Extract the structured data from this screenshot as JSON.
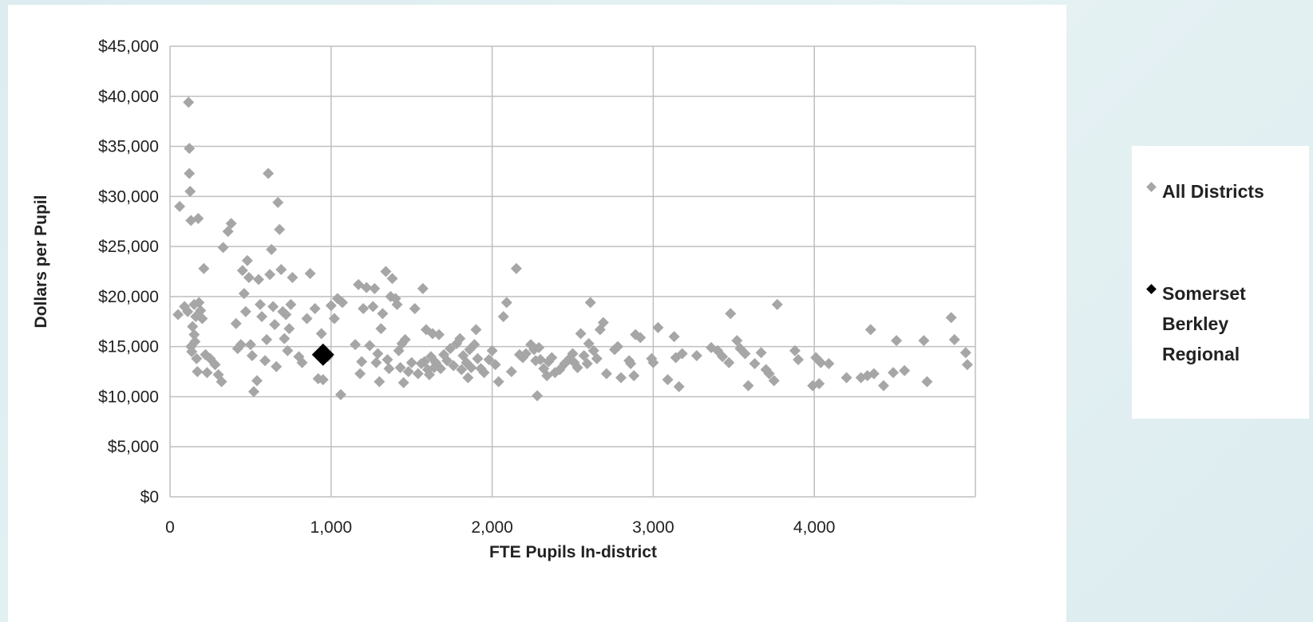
{
  "chart_data": {
    "type": "scatter",
    "xlabel": "FTE Pupils In-district",
    "ylabel": "Dollars per Pupil",
    "xlim": [
      0,
      5000
    ],
    "ylim": [
      0,
      45000
    ],
    "x_ticks": [
      0,
      1000,
      2000,
      3000,
      4000
    ],
    "x_tick_labels": [
      "0",
      "1,000",
      "2,000",
      "3,000",
      "4,000"
    ],
    "y_ticks": [
      0,
      5000,
      10000,
      15000,
      20000,
      25000,
      30000,
      35000,
      40000,
      45000
    ],
    "y_tick_labels": [
      "$0",
      "$5,000",
      "$10,000",
      "$15,000",
      "$20,000",
      "$25,000",
      "$30,000",
      "$35,000",
      "$40,000",
      "$45,000"
    ],
    "grid": true,
    "legend_position": "right",
    "series": [
      {
        "name": "All Districts",
        "color": "#a6a6a6",
        "marker": "diamond",
        "points": [
          [
            50,
            18200
          ],
          [
            60,
            29000
          ],
          [
            90,
            19000
          ],
          [
            110,
            18500
          ],
          [
            115,
            39400
          ],
          [
            120,
            34800
          ],
          [
            120,
            32300
          ],
          [
            125,
            30500
          ],
          [
            130,
            27600
          ],
          [
            130,
            15000
          ],
          [
            135,
            14500
          ],
          [
            140,
            17000
          ],
          [
            150,
            16200
          ],
          [
            150,
            19200
          ],
          [
            155,
            15500
          ],
          [
            160,
            18000
          ],
          [
            165,
            13800
          ],
          [
            170,
            12500
          ],
          [
            175,
            27800
          ],
          [
            180,
            19400
          ],
          [
            190,
            18600
          ],
          [
            200,
            17800
          ],
          [
            210,
            22800
          ],
          [
            220,
            14200
          ],
          [
            230,
            12400
          ],
          [
            250,
            13800
          ],
          [
            280,
            13200
          ],
          [
            300,
            12200
          ],
          [
            320,
            11500
          ],
          [
            330,
            24900
          ],
          [
            360,
            26500
          ],
          [
            380,
            27300
          ],
          [
            410,
            17300
          ],
          [
            420,
            14800
          ],
          [
            440,
            15200
          ],
          [
            450,
            22600
          ],
          [
            460,
            20300
          ],
          [
            470,
            18500
          ],
          [
            480,
            23600
          ],
          [
            490,
            21900
          ],
          [
            500,
            15200
          ],
          [
            510,
            14100
          ],
          [
            520,
            10500
          ],
          [
            540,
            11600
          ],
          [
            550,
            21700
          ],
          [
            560,
            19200
          ],
          [
            570,
            18000
          ],
          [
            590,
            13600
          ],
          [
            600,
            15700
          ],
          [
            610,
            32300
          ],
          [
            620,
            22200
          ],
          [
            630,
            24700
          ],
          [
            640,
            19000
          ],
          [
            650,
            17200
          ],
          [
            660,
            13000
          ],
          [
            670,
            29400
          ],
          [
            680,
            26700
          ],
          [
            690,
            22700
          ],
          [
            700,
            18500
          ],
          [
            710,
            15800
          ],
          [
            720,
            18200
          ],
          [
            730,
            14600
          ],
          [
            740,
            16800
          ],
          [
            750,
            19200
          ],
          [
            760,
            21900
          ],
          [
            800,
            14000
          ],
          [
            820,
            13400
          ],
          [
            850,
            17800
          ],
          [
            870,
            22300
          ],
          [
            900,
            18800
          ],
          [
            920,
            11800
          ],
          [
            940,
            16300
          ],
          [
            950,
            11700
          ],
          [
            980,
            14000
          ],
          [
            1000,
            19100
          ],
          [
            1020,
            17800
          ],
          [
            1040,
            19800
          ],
          [
            1060,
            10200
          ],
          [
            1070,
            19400
          ],
          [
            1150,
            15200
          ],
          [
            1170,
            21200
          ],
          [
            1180,
            12300
          ],
          [
            1190,
            13500
          ],
          [
            1200,
            18800
          ],
          [
            1220,
            20900
          ],
          [
            1240,
            15100
          ],
          [
            1260,
            19000
          ],
          [
            1270,
            20800
          ],
          [
            1280,
            13400
          ],
          [
            1290,
            14300
          ],
          [
            1300,
            11500
          ],
          [
            1310,
            16800
          ],
          [
            1320,
            18300
          ],
          [
            1340,
            22500
          ],
          [
            1350,
            13700
          ],
          [
            1360,
            12800
          ],
          [
            1370,
            20000
          ],
          [
            1380,
            21800
          ],
          [
            1400,
            19800
          ],
          [
            1410,
            19200
          ],
          [
            1420,
            14600
          ],
          [
            1430,
            12900
          ],
          [
            1440,
            15300
          ],
          [
            1450,
            11400
          ],
          [
            1460,
            15700
          ],
          [
            1480,
            12500
          ],
          [
            1500,
            13400
          ],
          [
            1520,
            18800
          ],
          [
            1540,
            12300
          ],
          [
            1560,
            13300
          ],
          [
            1570,
            20800
          ],
          [
            1580,
            13500
          ],
          [
            1590,
            16700
          ],
          [
            1600,
            12700
          ],
          [
            1610,
            12200
          ],
          [
            1620,
            14000
          ],
          [
            1630,
            16300
          ],
          [
            1640,
            12900
          ],
          [
            1650,
            13400
          ],
          [
            1670,
            16200
          ],
          [
            1680,
            12800
          ],
          [
            1700,
            14200
          ],
          [
            1720,
            13600
          ],
          [
            1740,
            14800
          ],
          [
            1760,
            13100
          ],
          [
            1780,
            15300
          ],
          [
            1800,
            15800
          ],
          [
            1810,
            12700
          ],
          [
            1820,
            14100
          ],
          [
            1840,
            13400
          ],
          [
            1850,
            11900
          ],
          [
            1860,
            14700
          ],
          [
            1870,
            12900
          ],
          [
            1890,
            15200
          ],
          [
            1900,
            16700
          ],
          [
            1910,
            13800
          ],
          [
            1930,
            12800
          ],
          [
            1950,
            12400
          ],
          [
            1980,
            13700
          ],
          [
            2000,
            14600
          ],
          [
            2020,
            13200
          ],
          [
            2040,
            11500
          ],
          [
            2070,
            18000
          ],
          [
            2090,
            19400
          ],
          [
            2120,
            12500
          ],
          [
            2150,
            22800
          ],
          [
            2170,
            14200
          ],
          [
            2190,
            13900
          ],
          [
            2210,
            14300
          ],
          [
            2240,
            15200
          ],
          [
            2260,
            14700
          ],
          [
            2270,
            13600
          ],
          [
            2280,
            10100
          ],
          [
            2290,
            14900
          ],
          [
            2300,
            13700
          ],
          [
            2320,
            12800
          ],
          [
            2340,
            12100
          ],
          [
            2350,
            13500
          ],
          [
            2370,
            13900
          ],
          [
            2390,
            12400
          ],
          [
            2420,
            12700
          ],
          [
            2450,
            13300
          ],
          [
            2480,
            13800
          ],
          [
            2500,
            14300
          ],
          [
            2510,
            13400
          ],
          [
            2530,
            12900
          ],
          [
            2550,
            16300
          ],
          [
            2570,
            14100
          ],
          [
            2590,
            13300
          ],
          [
            2600,
            15300
          ],
          [
            2610,
            19400
          ],
          [
            2630,
            14600
          ],
          [
            2650,
            13800
          ],
          [
            2670,
            16700
          ],
          [
            2690,
            17400
          ],
          [
            2710,
            12300
          ],
          [
            2760,
            14700
          ],
          [
            2780,
            15000
          ],
          [
            2800,
            11900
          ],
          [
            2850,
            13600
          ],
          [
            2860,
            13300
          ],
          [
            2880,
            12100
          ],
          [
            2890,
            16200
          ],
          [
            2920,
            15900
          ],
          [
            2990,
            13800
          ],
          [
            3000,
            13400
          ],
          [
            3030,
            16900
          ],
          [
            3090,
            11700
          ],
          [
            3130,
            16000
          ],
          [
            3140,
            13900
          ],
          [
            3160,
            11000
          ],
          [
            3180,
            14300
          ],
          [
            3270,
            14100
          ],
          [
            3360,
            14900
          ],
          [
            3400,
            14600
          ],
          [
            3430,
            14000
          ],
          [
            3470,
            13400
          ],
          [
            3480,
            18300
          ],
          [
            3520,
            15600
          ],
          [
            3540,
            14800
          ],
          [
            3570,
            14300
          ],
          [
            3590,
            11100
          ],
          [
            3630,
            13300
          ],
          [
            3670,
            14400
          ],
          [
            3700,
            12700
          ],
          [
            3720,
            12300
          ],
          [
            3750,
            11600
          ],
          [
            3770,
            19200
          ],
          [
            3880,
            14600
          ],
          [
            3900,
            13700
          ],
          [
            3990,
            11100
          ],
          [
            4010,
            13900
          ],
          [
            4030,
            11300
          ],
          [
            4040,
            13400
          ],
          [
            4090,
            13300
          ],
          [
            4200,
            11900
          ],
          [
            4290,
            11900
          ],
          [
            4330,
            12100
          ],
          [
            4350,
            16700
          ],
          [
            4370,
            12300
          ],
          [
            4430,
            11100
          ],
          [
            4490,
            12400
          ],
          [
            4510,
            15600
          ],
          [
            4560,
            12600
          ],
          [
            4680,
            15600
          ],
          [
            4700,
            11500
          ],
          [
            4850,
            17900
          ],
          [
            4870,
            15700
          ],
          [
            4940,
            14400
          ],
          [
            4950,
            13200
          ]
        ]
      },
      {
        "name": "Somerset Berkley Regional",
        "color": "#000000",
        "marker": "diamond",
        "points": [
          [
            950,
            14200
          ]
        ]
      }
    ]
  }
}
